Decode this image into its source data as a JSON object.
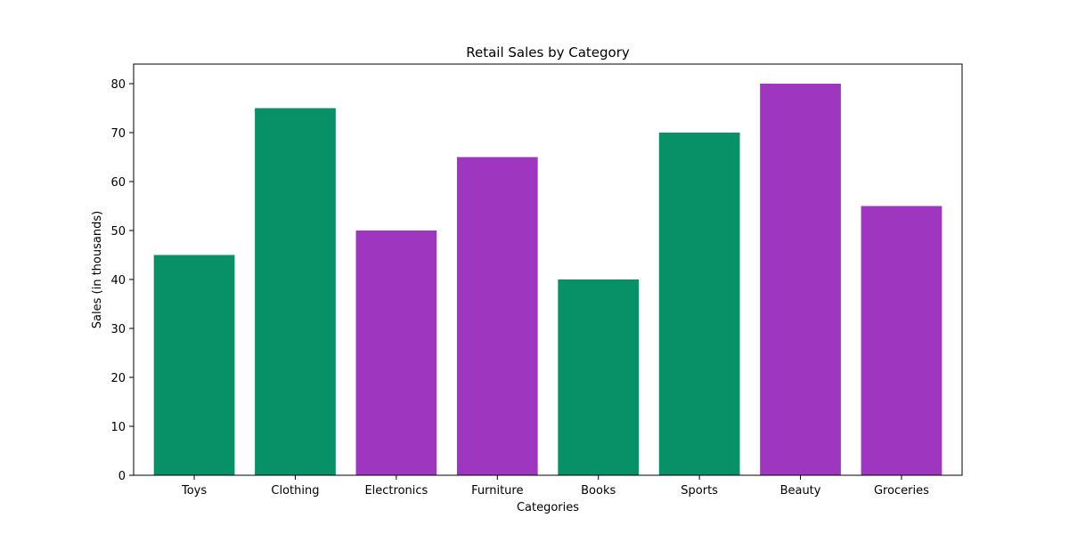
{
  "chart_data": {
    "type": "bar",
    "title": "Retail Sales by Category",
    "xlabel": "Categories",
    "ylabel": "Sales (in thousands)",
    "categories": [
      "Toys",
      "Clothing",
      "Electronics",
      "Furniture",
      "Books",
      "Sports",
      "Beauty",
      "Groceries"
    ],
    "values": [
      45,
      75,
      50,
      65,
      40,
      70,
      80,
      55
    ],
    "bar_colors": [
      "#089166",
      "#089166",
      "#9f36c0",
      "#9f36c0",
      "#089166",
      "#089166",
      "#9f36c0",
      "#9f36c0"
    ],
    "ylim": [
      0,
      84
    ],
    "yticks": [
      0,
      10,
      20,
      30,
      40,
      50,
      60,
      70,
      80
    ],
    "grid": false,
    "legend": "none"
  }
}
